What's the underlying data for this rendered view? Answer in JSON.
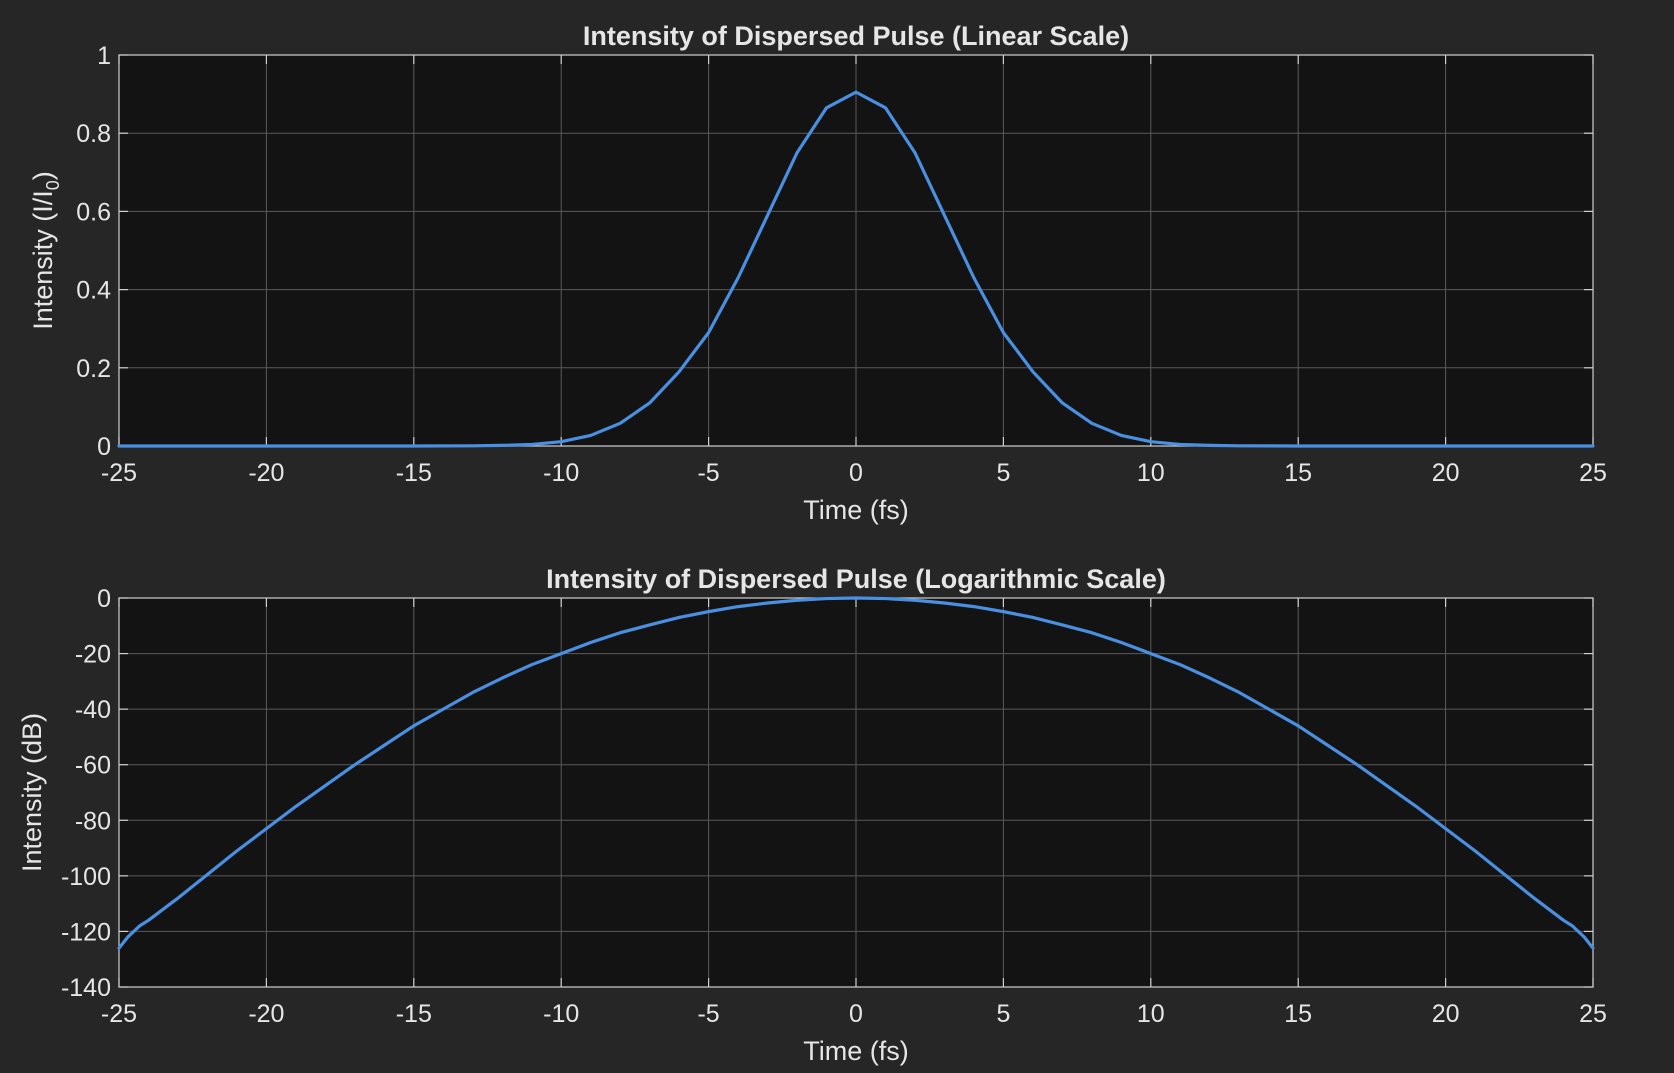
{
  "colors": {
    "figure_background": "#262626",
    "axes_background": "#131313",
    "grid": "#5a5a5a",
    "axis_line": "#cfcfcf",
    "text": "#e6e6e6",
    "series": "#4a90e2"
  },
  "chart_data": [
    {
      "type": "line",
      "title": "Intensity of Dispersed Pulse (Linear Scale)",
      "xlabel": "Time (fs)",
      "ylabel_main": "Intensity  (I/I",
      "ylabel_sub": "0",
      "ylabel_close": ")",
      "xlim": [
        -25,
        25
      ],
      "ylim": [
        0,
        1
      ],
      "xticks": [
        -25,
        -20,
        -15,
        -10,
        -5,
        0,
        5,
        10,
        15,
        20,
        25
      ],
      "yticks": [
        0,
        0.2,
        0.4,
        0.6,
        0.8,
        1
      ],
      "xtick_labels": [
        "-25",
        "-20",
        "-15",
        "-10",
        "-5",
        "0",
        "5",
        "10",
        "15",
        "20",
        "25"
      ],
      "ytick_labels": [
        "0",
        "0.2",
        "0.4",
        "0.6",
        "0.8",
        "1"
      ],
      "grid": true,
      "series": [
        {
          "x": [
            -25,
            -20,
            -15,
            -13,
            -12,
            -11,
            -10,
            -9,
            -8,
            -7,
            -6,
            -5,
            -4,
            -3,
            -2,
            -1,
            0,
            1,
            2,
            3,
            4,
            5,
            6,
            7,
            8,
            9,
            10,
            11,
            12,
            13,
            15,
            20,
            25
          ],
          "y": [
            0,
            0,
            0,
            0.0005,
            0.0015,
            0.004,
            0.011,
            0.027,
            0.058,
            0.11,
            0.19,
            0.29,
            0.43,
            0.59,
            0.75,
            0.865,
            0.905,
            0.865,
            0.75,
            0.59,
            0.43,
            0.29,
            0.19,
            0.11,
            0.058,
            0.027,
            0.011,
            0.004,
            0.0015,
            0.0005,
            0,
            0,
            0
          ]
        }
      ]
    },
    {
      "type": "line",
      "title": "Intensity of Dispersed Pulse (Logarithmic Scale)",
      "xlabel": "Time (fs)",
      "ylabel": "Intensity (dB)",
      "xlim": [
        -25,
        25
      ],
      "ylim": [
        -140,
        0
      ],
      "xticks": [
        -25,
        -20,
        -15,
        -10,
        -5,
        0,
        5,
        10,
        15,
        20,
        25
      ],
      "yticks": [
        -140,
        -120,
        -100,
        -80,
        -60,
        -40,
        -20,
        0
      ],
      "xtick_labels": [
        "-25",
        "-20",
        "-15",
        "-10",
        "-5",
        "0",
        "5",
        "10",
        "15",
        "20",
        "25"
      ],
      "ytick_labels": [
        "-140",
        "-120",
        "-100",
        "-80",
        "-60",
        "-40",
        "-20",
        "0"
      ],
      "grid": true,
      "series": [
        {
          "x": [
            -25,
            -24.7,
            -24.3,
            -24,
            -23,
            -22,
            -21,
            -20,
            -19,
            -18,
            -17,
            -16,
            -15,
            -14,
            -13,
            -12,
            -11,
            -10,
            -9,
            -8,
            -7,
            -6,
            -5,
            -4,
            -3,
            -2,
            -1,
            0,
            1,
            2,
            3,
            4,
            5,
            6,
            7,
            8,
            9,
            10,
            11,
            12,
            13,
            14,
            15,
            16,
            17,
            18,
            19,
            20,
            21,
            22,
            23,
            24,
            24.3,
            24.7,
            25
          ],
          "y": [
            -126,
            -122,
            -118,
            -116,
            -108,
            -99.5,
            -91,
            -83,
            -75,
            -67.5,
            -60,
            -53,
            -46,
            -40,
            -34,
            -28.8,
            -24,
            -20,
            -16,
            -12.5,
            -9.7,
            -7,
            -4.9,
            -3.1,
            -1.8,
            -0.8,
            -0.2,
            0,
            -0.2,
            -0.8,
            -1.8,
            -3.1,
            -4.9,
            -7,
            -9.7,
            -12.5,
            -16,
            -20,
            -24,
            -28.8,
            -34,
            -40,
            -46,
            -53,
            -60,
            -67.5,
            -75,
            -83,
            -91,
            -99.5,
            -108,
            -116,
            -118,
            -122,
            -126
          ]
        }
      ]
    }
  ]
}
